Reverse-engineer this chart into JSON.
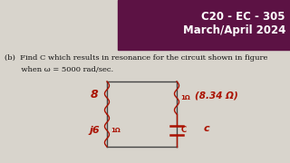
{
  "header_bg_color": "#5c1244",
  "header_text1": "C20 - EC - 305",
  "header_text2": "March/April 2024",
  "header_text_color": "#ffffff",
  "header_fontsize": 8.5,
  "body_bg_color": "#d8d4cc",
  "question_text1": "(b)  Find C which results in resonance for the circuit shown in figure",
  "question_text2": "       when ω = 5000 rad/sec.",
  "question_fontsize": 6.0,
  "question_color": "#111111",
  "circuit_color": "#aa1100",
  "label_8": "8",
  "label_j6": "j6",
  "label_1n_top": "1Ω",
  "label_1n_bot": "1Ω",
  "label_c": "C",
  "annotation_text": "(8.34 Ω)",
  "annotation_c": "c"
}
